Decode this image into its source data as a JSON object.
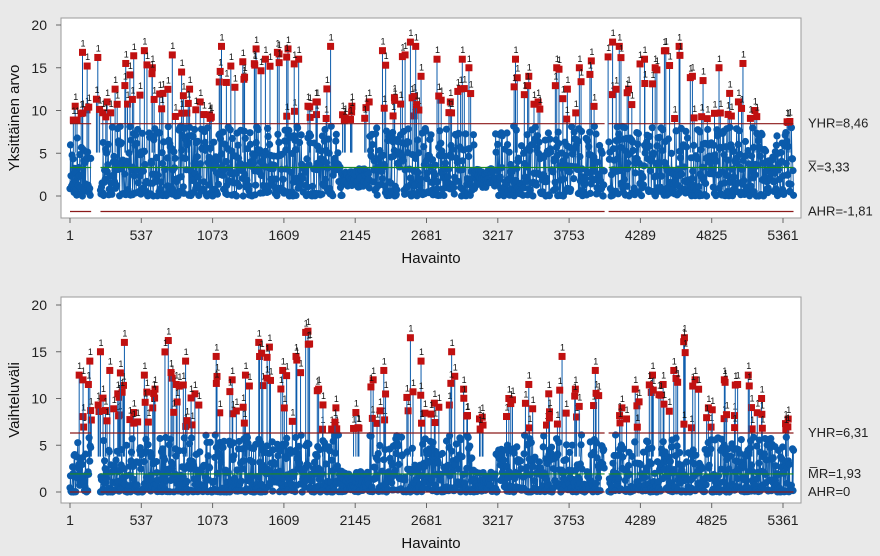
{
  "chart_data": [
    {
      "type": "line",
      "title": "",
      "ylabel": "Yksittäinen arvo",
      "xlabel": "Havainto",
      "x_ticks": [
        1,
        537,
        1073,
        1609,
        2145,
        2681,
        3217,
        3753,
        4289,
        4825,
        5361
      ],
      "y_ticks": [
        0,
        5,
        10,
        15,
        20
      ],
      "xlim": [
        1,
        5440
      ],
      "ylim": [
        -3,
        20
      ],
      "grid": false,
      "n_observations": 5440,
      "limits": [
        {
          "name": "YHR",
          "value": 8.46,
          "label": "YHR=8,46",
          "color": "#8b1a1a"
        },
        {
          "name": "center",
          "value": 3.33,
          "label": "X̅=3,33",
          "color": "#1e8c1e"
        },
        {
          "name": "AHR",
          "value": -1.81,
          "label": "AHR=-1,81",
          "color": "#8b1a1a"
        }
      ],
      "gaps": [
        [
          160,
          230
        ],
        [
          4020,
          4050
        ]
      ],
      "series_color": "#0b5bab",
      "out_of_control_color": "#c01010",
      "out_of_control_marker": "1",
      "out_of_control_approx": [
        {
          "x": 40,
          "y": 10.5
        },
        {
          "x": 95,
          "y": 16.8
        },
        {
          "x": 130,
          "y": 15.2
        },
        {
          "x": 210,
          "y": 16.2
        },
        {
          "x": 280,
          "y": 11.0
        },
        {
          "x": 340,
          "y": 12.5
        },
        {
          "x": 420,
          "y": 15.5
        },
        {
          "x": 480,
          "y": 16.4
        },
        {
          "x": 560,
          "y": 17.0
        },
        {
          "x": 620,
          "y": 15.0
        },
        {
          "x": 700,
          "y": 12.0
        },
        {
          "x": 770,
          "y": 16.5
        },
        {
          "x": 840,
          "y": 14.5
        },
        {
          "x": 900,
          "y": 12.5
        },
        {
          "x": 980,
          "y": 11.0
        },
        {
          "x": 1050,
          "y": 9.5
        },
        {
          "x": 1140,
          "y": 17.5
        },
        {
          "x": 1210,
          "y": 15.2
        },
        {
          "x": 1300,
          "y": 15.7
        },
        {
          "x": 1400,
          "y": 17.2
        },
        {
          "x": 1470,
          "y": 16.0
        },
        {
          "x": 1560,
          "y": 16.8
        },
        {
          "x": 1640,
          "y": 17.2
        },
        {
          "x": 1720,
          "y": 16.0
        },
        {
          "x": 1790,
          "y": 10.5
        },
        {
          "x": 1860,
          "y": 11.0
        },
        {
          "x": 1960,
          "y": 17.5
        },
        {
          "x": 2050,
          "y": 9.5
        },
        {
          "x": 2120,
          "y": 10.5
        },
        {
          "x": 2250,
          "y": 11.0
        },
        {
          "x": 2350,
          "y": 17.0
        },
        {
          "x": 2440,
          "y": 11.5
        },
        {
          "x": 2520,
          "y": 16.5
        },
        {
          "x": 2560,
          "y": 18.0
        },
        {
          "x": 2600,
          "y": 17.5
        },
        {
          "x": 2640,
          "y": 14.0
        },
        {
          "x": 2760,
          "y": 16.0
        },
        {
          "x": 2860,
          "y": 11.0
        },
        {
          "x": 2950,
          "y": 16.0
        },
        {
          "x": 3000,
          "y": 15.0
        },
        {
          "x": 3350,
          "y": 16.0
        },
        {
          "x": 3450,
          "y": 14.0
        },
        {
          "x": 3520,
          "y": 11.0
        },
        {
          "x": 3660,
          "y": 15.0
        },
        {
          "x": 3740,
          "y": 12.5
        },
        {
          "x": 3830,
          "y": 15.0
        },
        {
          "x": 3920,
          "y": 15.8
        },
        {
          "x": 4080,
          "y": 18.0
        },
        {
          "x": 4130,
          "y": 17.5
        },
        {
          "x": 4200,
          "y": 12.5
        },
        {
          "x": 4320,
          "y": 16.0
        },
        {
          "x": 4400,
          "y": 15.0
        },
        {
          "x": 4480,
          "y": 17.0
        },
        {
          "x": 4580,
          "y": 17.5
        },
        {
          "x": 4680,
          "y": 14.0
        },
        {
          "x": 4760,
          "y": 13.5
        },
        {
          "x": 4880,
          "y": 15.0
        },
        {
          "x": 4960,
          "y": 12.0
        },
        {
          "x": 5060,
          "y": 15.5
        },
        {
          "x": 5150,
          "y": 10.0
        },
        {
          "x": 5400,
          "y": 8.6
        }
      ]
    },
    {
      "type": "line",
      "title": "",
      "ylabel": "Vaihteluväli",
      "xlabel": "Havainto",
      "x_ticks": [
        1,
        537,
        1073,
        1609,
        2145,
        2681,
        3217,
        3753,
        4289,
        4825,
        5361
      ],
      "y_ticks": [
        0,
        5,
        10,
        15,
        20
      ],
      "xlim": [
        1,
        5440
      ],
      "ylim": [
        -1,
        20
      ],
      "grid": false,
      "n_observations": 5440,
      "limits": [
        {
          "name": "YHR",
          "value": 6.31,
          "label": "YHR=6,31",
          "color": "#8b1a1a"
        },
        {
          "name": "center",
          "value": 1.93,
          "label": "M̅R=1,93",
          "color": "#1e8c1e"
        },
        {
          "name": "AHR",
          "value": 0,
          "label": "AHR=0",
          "color": "#8b1a1a"
        }
      ],
      "gaps": [
        [
          160,
          230
        ],
        [
          4020,
          4050
        ]
      ],
      "series_color": "#0b5bab",
      "out_of_control_color": "#c01010",
      "out_of_control_marker": "1",
      "out_of_control_approx": [
        {
          "x": 70,
          "y": 12.5
        },
        {
          "x": 150,
          "y": 14.0
        },
        {
          "x": 230,
          "y": 15.0
        },
        {
          "x": 300,
          "y": 13.0
        },
        {
          "x": 360,
          "y": 10.5
        },
        {
          "x": 410,
          "y": 16.0
        },
        {
          "x": 480,
          "y": 8.5
        },
        {
          "x": 560,
          "y": 12.5
        },
        {
          "x": 640,
          "y": 11.0
        },
        {
          "x": 740,
          "y": 16.2
        },
        {
          "x": 800,
          "y": 11.5
        },
        {
          "x": 870,
          "y": 14.0
        },
        {
          "x": 940,
          "y": 10.5
        },
        {
          "x": 1100,
          "y": 14.5
        },
        {
          "x": 1220,
          "y": 12.0
        },
        {
          "x": 1320,
          "y": 12.5
        },
        {
          "x": 1420,
          "y": 16.0
        },
        {
          "x": 1500,
          "y": 15.5
        },
        {
          "x": 1600,
          "y": 13.0
        },
        {
          "x": 1700,
          "y": 14.5
        },
        {
          "x": 1790,
          "y": 17.2
        },
        {
          "x": 1870,
          "y": 11.0
        },
        {
          "x": 2000,
          "y": 9.0
        },
        {
          "x": 2150,
          "y": 8.5
        },
        {
          "x": 2280,
          "y": 12.0
        },
        {
          "x": 2360,
          "y": 13.0
        },
        {
          "x": 2560,
          "y": 16.5
        },
        {
          "x": 2640,
          "y": 14.0
        },
        {
          "x": 2740,
          "y": 9.5
        },
        {
          "x": 2870,
          "y": 15.0
        },
        {
          "x": 2960,
          "y": 11.0
        },
        {
          "x": 3100,
          "y": 8.0
        },
        {
          "x": 3300,
          "y": 10.0
        },
        {
          "x": 3450,
          "y": 11.5
        },
        {
          "x": 3600,
          "y": 10.5
        },
        {
          "x": 3700,
          "y": 14.5
        },
        {
          "x": 3800,
          "y": 11.0
        },
        {
          "x": 3950,
          "y": 13.0
        },
        {
          "x": 4150,
          "y": 9.0
        },
        {
          "x": 4250,
          "y": 11.0
        },
        {
          "x": 4380,
          "y": 12.5
        },
        {
          "x": 4460,
          "y": 11.5
        },
        {
          "x": 4540,
          "y": 13.0
        },
        {
          "x": 4620,
          "y": 16.5
        },
        {
          "x": 4700,
          "y": 12.0
        },
        {
          "x": 4800,
          "y": 9.0
        },
        {
          "x": 4920,
          "y": 12.0
        },
        {
          "x": 5020,
          "y": 11.5
        },
        {
          "x": 5100,
          "y": 12.5
        },
        {
          "x": 5200,
          "y": 10.0
        },
        {
          "x": 5400,
          "y": 7.8
        }
      ]
    }
  ]
}
